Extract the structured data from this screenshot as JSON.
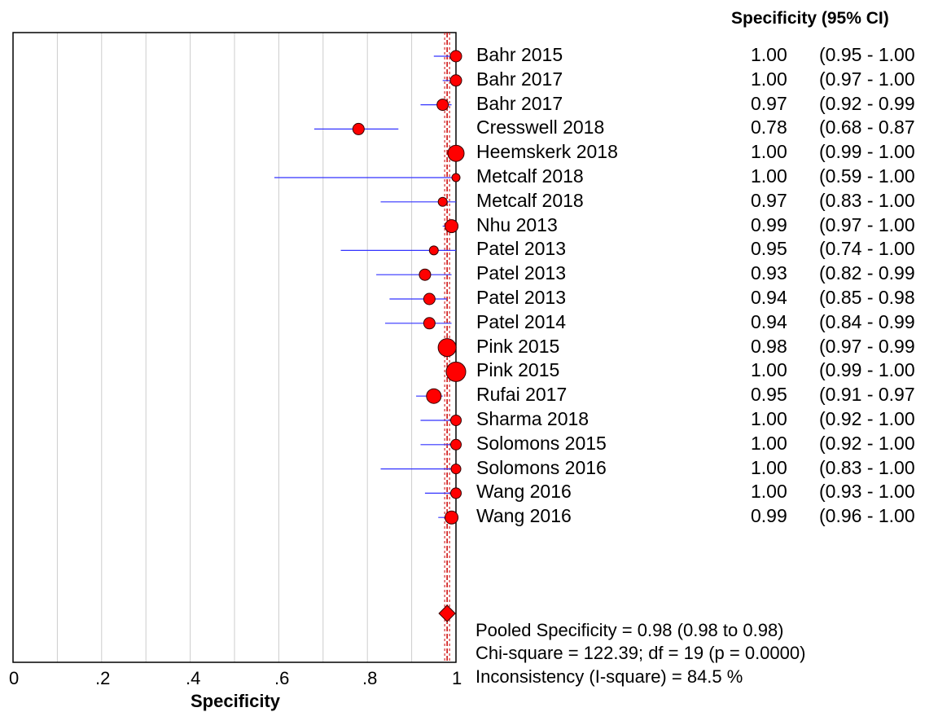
{
  "chart_data": {
    "type": "forest",
    "header": "Specificity (95% CI)",
    "xlabel": "Specificity",
    "xlim": [
      0,
      1
    ],
    "x_ticks": [
      "0",
      ".2",
      ".4",
      ".6",
      ".8",
      "1"
    ],
    "grid": true,
    "pooled_line": 0.98,
    "studies": [
      {
        "name": "Bahr 2015",
        "est": 1.0,
        "lo": 0.95,
        "hi": 1.0,
        "est_text": "1.00",
        "ci_text": "(0.95 - 1.00"
      },
      {
        "name": "Bahr 2017",
        "est": 1.0,
        "lo": 0.97,
        "hi": 1.0,
        "est_text": "1.00",
        "ci_text": "(0.97 - 1.00"
      },
      {
        "name": "Bahr 2017",
        "est": 0.97,
        "lo": 0.92,
        "hi": 0.99,
        "est_text": "0.97",
        "ci_text": "(0.92 - 0.99"
      },
      {
        "name": "Cresswell 2018",
        "est": 0.78,
        "lo": 0.68,
        "hi": 0.87,
        "est_text": "0.78",
        "ci_text": "(0.68 - 0.87"
      },
      {
        "name": "Heemskerk 2018",
        "est": 1.0,
        "lo": 0.99,
        "hi": 1.0,
        "est_text": "1.00",
        "ci_text": "(0.99 - 1.00"
      },
      {
        "name": "Metcalf 2018",
        "est": 1.0,
        "lo": 0.59,
        "hi": 1.0,
        "est_text": "1.00",
        "ci_text": "(0.59 - 1.00"
      },
      {
        "name": "Metcalf 2018",
        "est": 0.97,
        "lo": 0.83,
        "hi": 1.0,
        "est_text": "0.97",
        "ci_text": "(0.83 - 1.00"
      },
      {
        "name": "Nhu 2013",
        "est": 0.99,
        "lo": 0.97,
        "hi": 1.0,
        "est_text": "0.99",
        "ci_text": "(0.97 - 1.00"
      },
      {
        "name": "Patel 2013",
        "est": 0.95,
        "lo": 0.74,
        "hi": 1.0,
        "est_text": "0.95",
        "ci_text": "(0.74 - 1.00"
      },
      {
        "name": "Patel 2013",
        "est": 0.93,
        "lo": 0.82,
        "hi": 0.99,
        "est_text": "0.93",
        "ci_text": "(0.82 - 0.99"
      },
      {
        "name": "Patel 2013",
        "est": 0.94,
        "lo": 0.85,
        "hi": 0.98,
        "est_text": "0.94",
        "ci_text": "(0.85 - 0.98"
      },
      {
        "name": "Patel 2014",
        "est": 0.94,
        "lo": 0.84,
        "hi": 0.99,
        "est_text": "0.94",
        "ci_text": "(0.84 - 0.99"
      },
      {
        "name": "Pink 2015",
        "est": 0.98,
        "lo": 0.97,
        "hi": 0.99,
        "est_text": "0.98",
        "ci_text": "(0.97 - 0.99"
      },
      {
        "name": "Pink 2015",
        "est": 1.0,
        "lo": 0.99,
        "hi": 1.0,
        "est_text": "1.00",
        "ci_text": "(0.99 - 1.00"
      },
      {
        "name": "Rufai 2017",
        "est": 0.95,
        "lo": 0.91,
        "hi": 0.97,
        "est_text": "0.95",
        "ci_text": "(0.91 - 0.97"
      },
      {
        "name": "Sharma 2018",
        "est": 1.0,
        "lo": 0.92,
        "hi": 1.0,
        "est_text": "1.00",
        "ci_text": "(0.92 - 1.00"
      },
      {
        "name": "Solomons 2015",
        "est": 1.0,
        "lo": 0.92,
        "hi": 1.0,
        "est_text": "1.00",
        "ci_text": "(0.92 - 1.00"
      },
      {
        "name": "Solomons 2016",
        "est": 1.0,
        "lo": 0.83,
        "hi": 1.0,
        "est_text": "1.00",
        "ci_text": "(0.83 - 1.00"
      },
      {
        "name": "Wang 2016",
        "est": 1.0,
        "lo": 0.93,
        "hi": 1.0,
        "est_text": "1.00",
        "ci_text": "(0.93 - 1.00"
      },
      {
        "name": "Wang 2016",
        "est": 0.99,
        "lo": 0.96,
        "hi": 1.0,
        "est_text": "0.99",
        "ci_text": "(0.96 - 1.00"
      }
    ],
    "pooled": {
      "est": 0.98,
      "lo": 0.98,
      "hi": 0.98
    },
    "stats": [
      "Pooled Specificity = 0.98 (0.98 to 0.98)",
      "Chi-square = 122.39; df =  19 (p = 0.0000)",
      "Inconsistency (I-square) = 84.5 %"
    ],
    "colors": {
      "marker": "#ff0000",
      "ci_line": "#3333ff",
      "pooled_line": "#cc0000",
      "grid": "#cccccc"
    }
  }
}
